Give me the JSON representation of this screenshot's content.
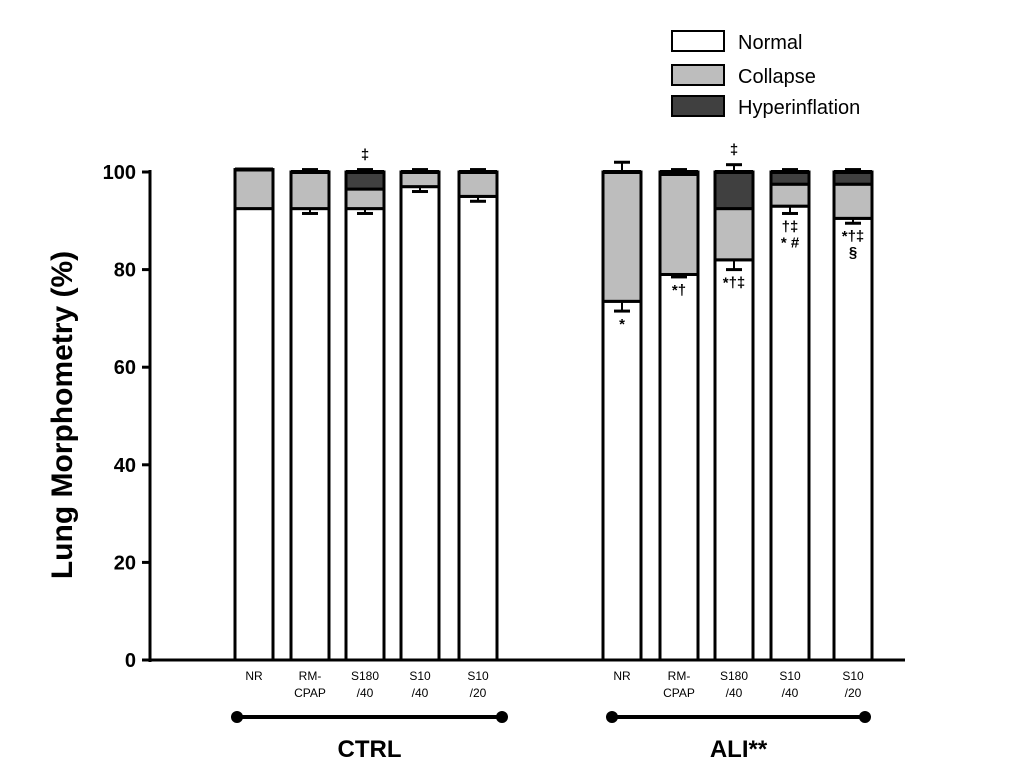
{
  "chart_data": {
    "type": "bar",
    "stacked": true,
    "ylabel": "Lung Morphometry (%)",
    "ylim": [
      0,
      100
    ],
    "yticks": [
      0,
      20,
      40,
      60,
      80,
      100
    ],
    "grid": false,
    "legend": {
      "position": "top-right",
      "entries": [
        {
          "name": "Normal",
          "color": "#ffffff"
        },
        {
          "name": "Collapse",
          "color": "#bdbdbd"
        },
        {
          "name": "Hyperinflation",
          "color": "#404040"
        }
      ]
    },
    "groups": [
      {
        "label": "CTRL",
        "categories": [
          {
            "line1": "NR",
            "line2": "",
            "normal": 92.5,
            "collapse": 8,
            "hyperinflation": 0,
            "err": 0,
            "top_err": 0,
            "annotation_top": "",
            "annotation_below": []
          },
          {
            "line1": "RM-",
            "line2": "CPAP",
            "normal": 92.5,
            "collapse": 7.5,
            "hyperinflation": 0,
            "err": 1,
            "top_err": 0.5,
            "annotation_top": "",
            "annotation_below": []
          },
          {
            "line1": "S180",
            "line2": "/40",
            "normal": 92.5,
            "collapse": 4,
            "hyperinflation": 3.5,
            "err": 1,
            "top_err": 0.5,
            "annotation_top": "‡",
            "annotation_below": []
          },
          {
            "line1": "S10",
            "line2": "/40",
            "normal": 97,
            "collapse": 3,
            "hyperinflation": 0,
            "err": 1,
            "top_err": 0.5,
            "annotation_top": "",
            "annotation_below": []
          },
          {
            "line1": "S10",
            "line2": "/20",
            "normal": 95,
            "collapse": 5,
            "hyperinflation": 0,
            "err": 1,
            "top_err": 0.5,
            "annotation_top": "",
            "annotation_below": []
          }
        ]
      },
      {
        "label": "ALI**",
        "categories": [
          {
            "line1": "NR",
            "line2": "",
            "normal": 73.5,
            "collapse": 26.5,
            "hyperinflation": 0,
            "err": 2,
            "top_err": 2,
            "annotation_top": "",
            "annotation_below": [
              "*"
            ]
          },
          {
            "line1": "RM-",
            "line2": "CPAP",
            "normal": 79,
            "collapse": 20.5,
            "hyperinflation": 0.5,
            "err": 0.5,
            "top_err": 0.5,
            "annotation_top": "",
            "annotation_below": [
              "*†"
            ]
          },
          {
            "line1": "S180",
            "line2": "/40",
            "normal": 82,
            "collapse": 10.5,
            "hyperinflation": 7.5,
            "err": 2,
            "top_err": 1.5,
            "annotation_top": "‡",
            "annotation_below": [
              "*†‡"
            ]
          },
          {
            "line1": "S10",
            "line2": "/40",
            "normal": 93,
            "collapse": 4.5,
            "hyperinflation": 2.5,
            "err": 1.5,
            "top_err": 0.5,
            "annotation_top": "",
            "annotation_below": [
              "†‡",
              "* #"
            ]
          },
          {
            "line1": "S10",
            "line2": "/20",
            "normal": 90.5,
            "collapse": 7,
            "hyperinflation": 2.5,
            "err": 1,
            "top_err": 0.5,
            "annotation_top": "",
            "annotation_below": [
              "*†‡",
              "§"
            ]
          }
        ]
      }
    ]
  }
}
